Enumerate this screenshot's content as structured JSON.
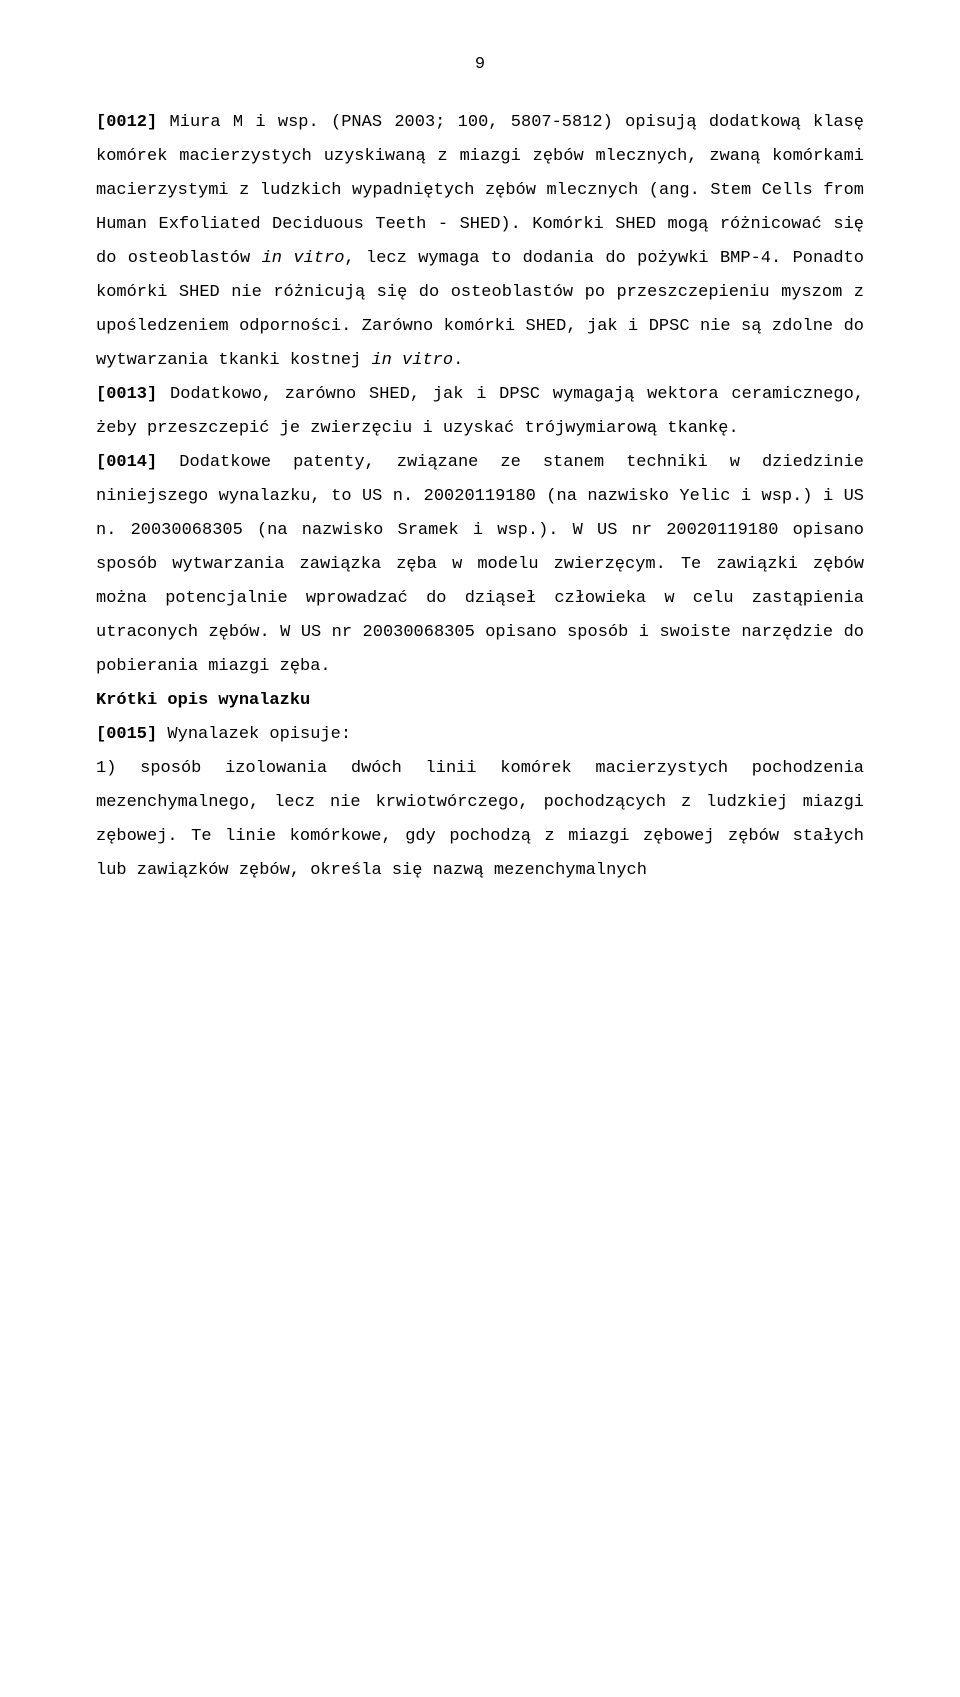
{
  "page_number": "9",
  "paragraphs": [
    {
      "type": "justified",
      "spans": [
        {
          "bold": true,
          "text": "[0012]"
        },
        {
          "text": " Miura M i wsp. (PNAS 2003; 100, 5807-5812) opisują dodatkową klasę komórek macierzystych uzyskiwaną z miazgi zębów mlecznych, zwaną komórkami macierzystymi z ludzkich wypadniętych zębów mlecznych (ang. Stem Cells from Human Exfoliated Deciduous Teeth - SHED). Komórki SHED mogą różnicować się do osteoblastów "
        },
        {
          "italic": true,
          "text": "in vitro"
        },
        {
          "text": ", lecz wymaga to dodania do pożywki BMP-4. Ponadto komórki SHED nie różnicują się do osteoblastów po przeszczepieniu myszom z upośledzeniem odporności. Zarówno komórki SHED, jak i DPSC nie są zdolne do wytwarzania tkanki kostnej "
        },
        {
          "italic": true,
          "text": "in vitro"
        },
        {
          "text": "."
        }
      ]
    },
    {
      "type": "justified",
      "spans": [
        {
          "bold": true,
          "text": "[0013]"
        },
        {
          "text": " Dodatkowo, zarówno SHED, jak i DPSC wymagają wektora ceramicznego, żeby przeszczepić je zwierzęciu i uzyskać trójwymiarową tkankę."
        }
      ]
    },
    {
      "type": "justified",
      "spans": [
        {
          "bold": true,
          "text": "[0014]"
        },
        {
          "text": " Dodatkowe patenty, związane ze stanem techniki w dziedzinie niniejszego wynalazku, to US n. 20020119180 (na nazwisko Yelic i wsp.) i US n. 20030068305 (na nazwisko Sramek i wsp.). W US nr 20020119180 opisano sposób wytwarzania zawiązka zęba w modelu zwierzęcym. Te zawiązki zębów można potencjalnie wprowadzać do dziąseł człowieka w celu zastąpienia utraconych zębów. W US nr 20030068305 opisano sposób i swoiste narzędzie do pobierania miazgi zęba."
        }
      ]
    },
    {
      "type": "heading",
      "spans": [
        {
          "bold": true,
          "text": "Krótki opis wynalazku"
        }
      ]
    },
    {
      "type": "justified",
      "spans": [
        {
          "bold": true,
          "text": "[0015]"
        },
        {
          "text": " Wynalazek opisuje:"
        }
      ]
    },
    {
      "type": "justified",
      "spans": [
        {
          "text": "1) sposób izolowania dwóch linii komórek macierzystych pochodzenia mezenchymalnego, lecz nie krwiotwórczego, pochodzących z ludzkiej miazgi zębowej. Te linie komórkowe, gdy pochodzą z miazgi zębowej zębów stałych lub zawiązków zębów, określa się nazwą mezenchymalnych"
        }
      ]
    }
  ]
}
